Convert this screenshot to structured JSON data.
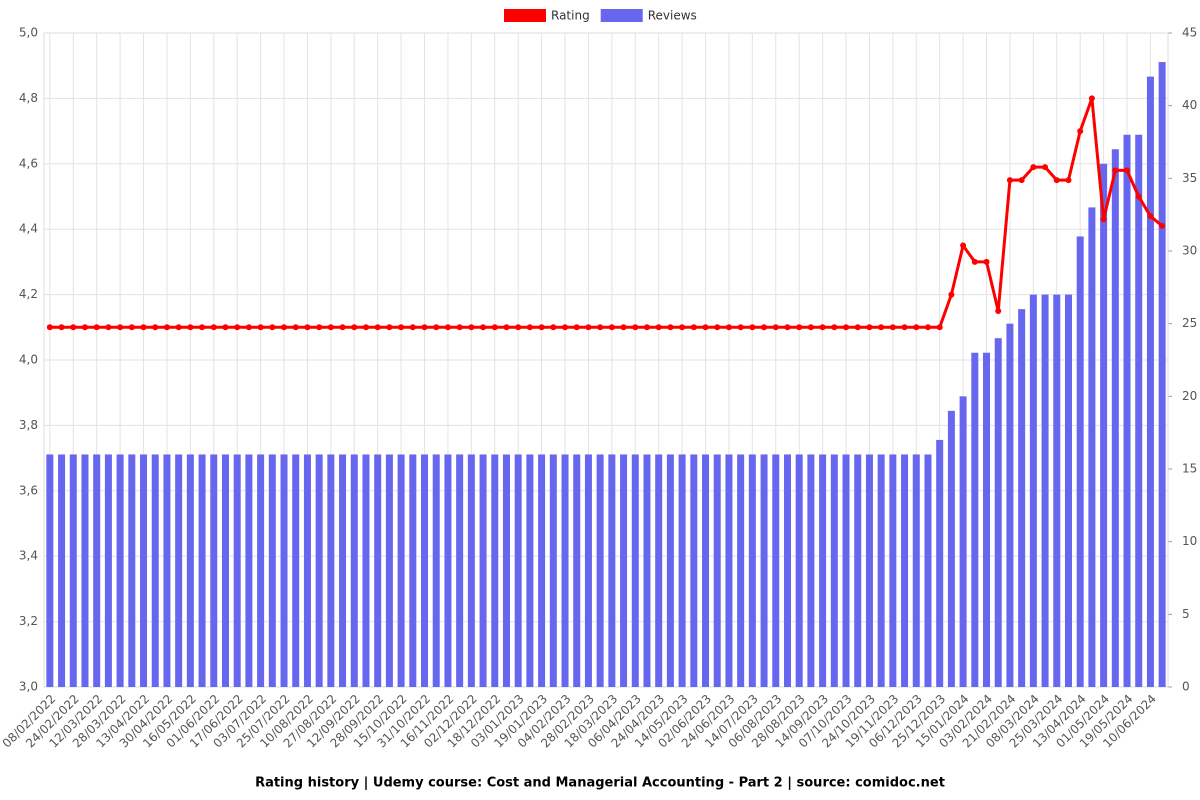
{
  "chart_data": {
    "type": "bar_line",
    "title": "Rating history | Udemy course: Cost and Managerial Accounting - Part 2 | source: comidoc.net",
    "categories": [
      "08/02/2022",
      null,
      "24/02/2022",
      null,
      "12/03/2022",
      null,
      "28/03/2022",
      null,
      "13/04/2022",
      null,
      "30/04/2022",
      null,
      "16/05/2022",
      null,
      "01/06/2022",
      null,
      "17/06/2022",
      null,
      "03/07/2022",
      null,
      "25/07/2022",
      null,
      "10/08/2022",
      null,
      "27/08/2022",
      null,
      "12/09/2022",
      null,
      "28/09/2022",
      null,
      "15/10/2022",
      null,
      "31/10/2022",
      null,
      "16/11/2022",
      null,
      "02/12/2022",
      null,
      "18/12/2022",
      null,
      "03/01/2023",
      null,
      "19/01/2023",
      null,
      "04/02/2023",
      null,
      "28/02/2023",
      null,
      "18/03/2023",
      null,
      "06/04/2023",
      null,
      "24/04/2023",
      null,
      "14/05/2023",
      null,
      "02/06/2023",
      null,
      "24/06/2023",
      null,
      "14/07/2023",
      null,
      "06/08/2023",
      null,
      "28/08/2023",
      null,
      "14/09/2023",
      null,
      "07/10/2023",
      null,
      "24/10/2023",
      null,
      "19/11/2023",
      null,
      "06/12/2023",
      null,
      "25/12/2023",
      null,
      "15/01/2024",
      null,
      "03/02/2024",
      null,
      "21/02/2024",
      null,
      "08/03/2024",
      null,
      "25/03/2024",
      null,
      "13/04/2024",
      null,
      "01/05/2024",
      null,
      "19/05/2024",
      null,
      "10/06/2024",
      null
    ],
    "series": [
      {
        "name": "Rating",
        "color": "#ff0000",
        "kind": "line",
        "axis": "y",
        "values": [
          4.1,
          4.1,
          4.1,
          4.1,
          4.1,
          4.1,
          4.1,
          4.1,
          4.1,
          4.1,
          4.1,
          4.1,
          4.1,
          4.1,
          4.1,
          4.1,
          4.1,
          4.1,
          4.1,
          4.1,
          4.1,
          4.1,
          4.1,
          4.1,
          4.1,
          4.1,
          4.1,
          4.1,
          4.1,
          4.1,
          4.1,
          4.1,
          4.1,
          4.1,
          4.1,
          4.1,
          4.1,
          4.1,
          4.1,
          4.1,
          4.1,
          4.1,
          4.1,
          4.1,
          4.1,
          4.1,
          4.1,
          4.1,
          4.1,
          4.1,
          4.1,
          4.1,
          4.1,
          4.1,
          4.1,
          4.1,
          4.1,
          4.1,
          4.1,
          4.1,
          4.1,
          4.1,
          4.1,
          4.1,
          4.1,
          4.1,
          4.1,
          4.1,
          4.1,
          4.1,
          4.1,
          4.1,
          4.1,
          4.1,
          4.1,
          4.1,
          4.1,
          4.2,
          4.35,
          4.3,
          4.3,
          4.15,
          4.55,
          4.55,
          4.59,
          4.59,
          4.55,
          4.55,
          4.7,
          4.8,
          4.43,
          4.58,
          4.58,
          4.5,
          4.44,
          4.41
        ]
      },
      {
        "name": "Reviews",
        "color": "#6666ee",
        "kind": "bar",
        "axis": "y2",
        "values": [
          16,
          16,
          16,
          16,
          16,
          16,
          16,
          16,
          16,
          16,
          16,
          16,
          16,
          16,
          16,
          16,
          16,
          16,
          16,
          16,
          16,
          16,
          16,
          16,
          16,
          16,
          16,
          16,
          16,
          16,
          16,
          16,
          16,
          16,
          16,
          16,
          16,
          16,
          16,
          16,
          16,
          16,
          16,
          16,
          16,
          16,
          16,
          16,
          16,
          16,
          16,
          16,
          16,
          16,
          16,
          16,
          16,
          16,
          16,
          16,
          16,
          16,
          16,
          16,
          16,
          16,
          16,
          16,
          16,
          16,
          16,
          16,
          16,
          16,
          16,
          16,
          17,
          19,
          20,
          23,
          23,
          24,
          25,
          26,
          27,
          27,
          27,
          27,
          31,
          33,
          36,
          37,
          38,
          38,
          42,
          43
        ]
      }
    ],
    "ylim": [
      3,
      5
    ],
    "yticks": [
      {
        "value": 3,
        "label": "3,0"
      },
      {
        "value": 3.2,
        "label": "3,2"
      },
      {
        "value": 3.4,
        "label": "3,4"
      },
      {
        "value": 3.6,
        "label": "3,6"
      },
      {
        "value": 3.8,
        "label": "3,8"
      },
      {
        "value": 4,
        "label": "4,0"
      },
      {
        "value": 4.2,
        "label": "4,2"
      },
      {
        "value": 4.4,
        "label": "4,4"
      },
      {
        "value": 4.6,
        "label": "4,6"
      },
      {
        "value": 4.8,
        "label": "4,8"
      },
      {
        "value": 5,
        "label": "5,0"
      }
    ],
    "y2lim": [
      0,
      45
    ],
    "y2ticks": [
      0,
      5,
      10,
      15,
      20,
      25,
      30,
      35,
      40,
      45
    ],
    "grid": true,
    "legend": "top"
  }
}
